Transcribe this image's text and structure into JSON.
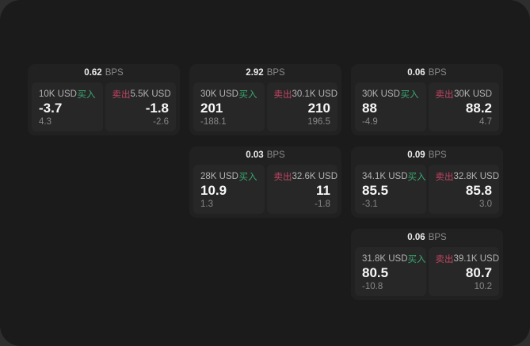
{
  "window": {
    "background": "#1b1b1b",
    "outer_background": "#2e2e2e"
  },
  "labels": {
    "buy": "买入",
    "sell": "卖出",
    "bps_unit": "BPS"
  },
  "colors": {
    "buy_green": "#3aa870",
    "sell_red": "#c04663",
    "card_bg": "#212121",
    "panel_bg": "#272727"
  },
  "cards": [
    {
      "bps": "0.62",
      "col": 1,
      "row": 1,
      "buy": {
        "amount": "10K USD",
        "value": "-3.7",
        "sub": "4.3"
      },
      "sell": {
        "amount": "5.5K USD",
        "value": "-1.8",
        "sub": "-2.6"
      }
    },
    {
      "bps": "2.92",
      "col": 2,
      "row": 1,
      "buy": {
        "amount": "30K USD",
        "value": "201",
        "sub": "-188.1"
      },
      "sell": {
        "amount": "30.1K USD",
        "value": "210",
        "sub": "196.5"
      }
    },
    {
      "bps": "0.06",
      "col": 3,
      "row": 1,
      "buy": {
        "amount": "30K USD",
        "value": "88",
        "sub": "-4.9"
      },
      "sell": {
        "amount": "30K USD",
        "value": "88.2",
        "sub": "4.7"
      }
    },
    {
      "bps": "0.03",
      "col": 2,
      "row": 2,
      "buy": {
        "amount": "28K USD",
        "value": "10.9",
        "sub": "1.3"
      },
      "sell": {
        "amount": "32.6K USD",
        "value": "11",
        "sub": "-1.8"
      }
    },
    {
      "bps": "0.09",
      "col": 3,
      "row": 2,
      "buy": {
        "amount": "34.1K USD",
        "value": "85.5",
        "sub": "-3.1"
      },
      "sell": {
        "amount": "32.8K USD",
        "value": "85.8",
        "sub": "3.0"
      }
    },
    {
      "bps": "0.06",
      "col": 3,
      "row": 3,
      "buy": {
        "amount": "31.8K USD",
        "value": "80.5",
        "sub": "-10.8"
      },
      "sell": {
        "amount": "39.1K USD",
        "value": "80.7",
        "sub": "10.2"
      }
    }
  ]
}
